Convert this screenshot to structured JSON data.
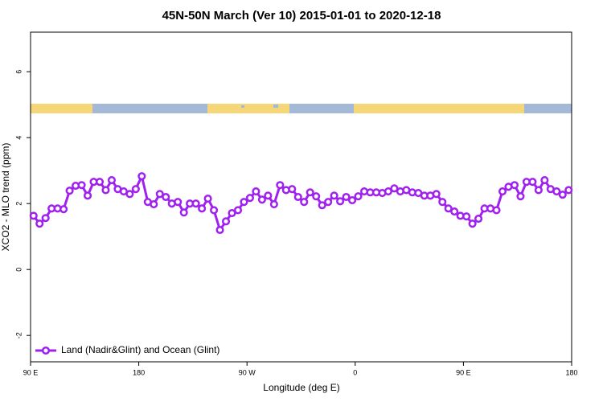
{
  "chart_data": {
    "type": "line",
    "title": "45N-50N March (Ver 10)   2015-01-01 to 2020-12-18",
    "x_label": "Longitude (deg E)",
    "y_label": "XCO2 - MLO trend (ppm)",
    "x": [
      92.5,
      97.5,
      102.5,
      107.5,
      112.5,
      117.5,
      122.5,
      127.5,
      132.5,
      137.5,
      142.5,
      147.5,
      152.5,
      157.5,
      162.5,
      167.5,
      172.5,
      177.5,
      182.5,
      187.5,
      192.5,
      197.5,
      202.5,
      207.5,
      212.5,
      217.5,
      222.5,
      227.5,
      232.5,
      237.5,
      242.5,
      247.5,
      252.5,
      257.5,
      262.5,
      267.5,
      272.5,
      277.5,
      282.5,
      287.5,
      292.5,
      297.5,
      302.5,
      307.5,
      312.5,
      317.5,
      322.5,
      327.5,
      332.5,
      337.5,
      342.5,
      347.5,
      352.5,
      357.5,
      362.5,
      367.5,
      372.5,
      377.5,
      382.5,
      387.5,
      392.5,
      397.5,
      402.5,
      407.5,
      412.5,
      417.5,
      422.5,
      427.5,
      432.5,
      437.5,
      442.5,
      447.5,
      452.5,
      457.5,
      462.5,
      467.5,
      472.5,
      477.5,
      482.5,
      487.5,
      492.5,
      497.5,
      502.5,
      507.5,
      512.5,
      517.5,
      522.5,
      527.5,
      532.5,
      537.5
    ],
    "series": [
      {
        "name": "Land (Nadir&Glint) and Ocean (Glint)",
        "color": "#a020f0",
        "values": [
          1.63,
          1.39,
          1.56,
          1.85,
          1.85,
          1.83,
          2.39,
          2.54,
          2.56,
          2.24,
          2.66,
          2.66,
          2.41,
          2.71,
          2.44,
          2.37,
          2.29,
          2.44,
          2.83,
          2.05,
          1.98,
          2.29,
          2.2,
          2.0,
          2.05,
          1.73,
          2.0,
          2.0,
          1.85,
          2.15,
          1.8,
          1.2,
          1.46,
          1.71,
          1.8,
          2.05,
          2.17,
          2.37,
          2.12,
          2.24,
          1.98,
          2.56,
          2.41,
          2.44,
          2.2,
          2.05,
          2.34,
          2.22,
          1.95,
          2.05,
          2.24,
          2.07,
          2.2,
          2.1,
          2.22,
          2.37,
          2.34,
          2.34,
          2.32,
          2.37,
          2.46,
          2.37,
          2.41,
          2.34,
          2.32,
          2.24,
          2.24,
          2.29,
          2.05,
          1.85,
          1.76,
          1.63,
          1.61,
          1.39,
          1.54,
          1.85,
          1.85,
          1.8,
          2.37,
          2.51,
          2.56,
          2.22,
          2.66,
          2.66,
          2.41,
          2.71,
          2.44,
          2.37,
          2.27,
          2.41
        ]
      }
    ],
    "xlim": [
      90,
      540
    ],
    "xticks": [
      {
        "value": 90,
        "label": "90 E"
      },
      {
        "value": 180,
        "label": "180"
      },
      {
        "value": 270,
        "label": "90 W"
      },
      {
        "value": 360,
        "label": "0"
      },
      {
        "value": 450,
        "label": "90 E"
      },
      {
        "value": 540,
        "label": "180"
      }
    ],
    "ylim": [
      -2.8,
      7.2
    ],
    "yticks": [
      -2,
      0,
      2,
      4,
      6
    ],
    "legend": "bottom-left"
  }
}
